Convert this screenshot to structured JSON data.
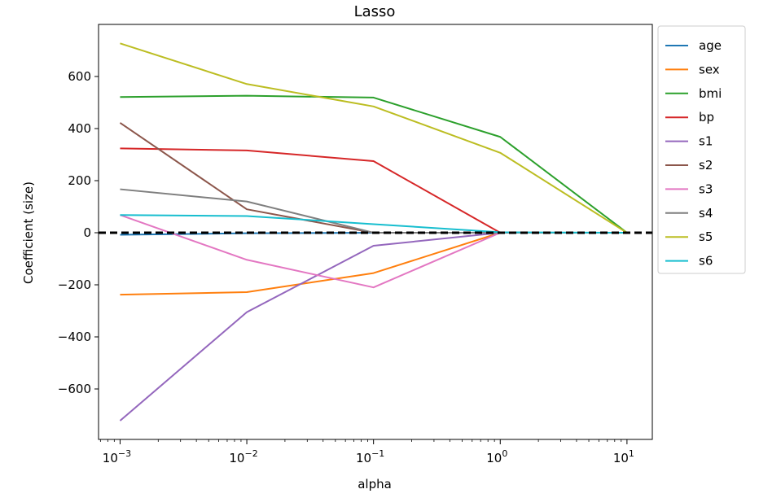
{
  "chart_data": {
    "type": "line",
    "title": "Lasso",
    "xlabel": "alpha",
    "ylabel": "Coefficient (size)",
    "xscale": "log",
    "x": [
      0.001,
      0.01,
      0.1,
      1,
      10
    ],
    "xtick_labels": [
      {
        "base": "10",
        "exp": "−3"
      },
      {
        "base": "10",
        "exp": "−2"
      },
      {
        "base": "10",
        "exp": "−1"
      },
      {
        "base": "10",
        "exp": "0"
      },
      {
        "base": "10",
        "exp": "1"
      }
    ],
    "yticks": [
      -600,
      -400,
      -200,
      0,
      200,
      400,
      600
    ],
    "ytick_labels": [
      "−600",
      "−400",
      "−200",
      "0",
      "200",
      "400",
      "600"
    ],
    "ylim": [
      -800,
      800
    ],
    "grid": false,
    "legend_position": "outside-right",
    "zero_line": {
      "value": 0,
      "color": "#000000",
      "style": "dashed"
    },
    "series": [
      {
        "name": "age",
        "color": "#1f77b4",
        "values": [
          -8,
          -2,
          0,
          0,
          0
        ]
      },
      {
        "name": "sex",
        "color": "#ff7f0e",
        "values": [
          -238,
          -228,
          -155,
          0,
          0
        ]
      },
      {
        "name": "bmi",
        "color": "#2ca02c",
        "values": [
          521,
          526,
          519,
          368,
          0
        ]
      },
      {
        "name": "bp",
        "color": "#d62728",
        "values": [
          324,
          316,
          275,
          0,
          0
        ]
      },
      {
        "name": "s1",
        "color": "#9467bd",
        "values": [
          -722,
          -305,
          -50,
          0,
          0
        ]
      },
      {
        "name": "s2",
        "color": "#8c564b",
        "values": [
          422,
          90,
          0,
          0,
          0
        ]
      },
      {
        "name": "s3",
        "color": "#e377c2",
        "values": [
          68,
          -104,
          -210,
          0,
          0
        ]
      },
      {
        "name": "s4",
        "color": "#7f7f7f",
        "values": [
          167,
          120,
          0,
          0,
          0
        ]
      },
      {
        "name": "s5",
        "color": "#bcbd22",
        "values": [
          727,
          571,
          485,
          307,
          0
        ]
      },
      {
        "name": "s6",
        "color": "#17becf",
        "values": [
          68,
          64,
          33,
          2,
          0
        ]
      }
    ]
  }
}
